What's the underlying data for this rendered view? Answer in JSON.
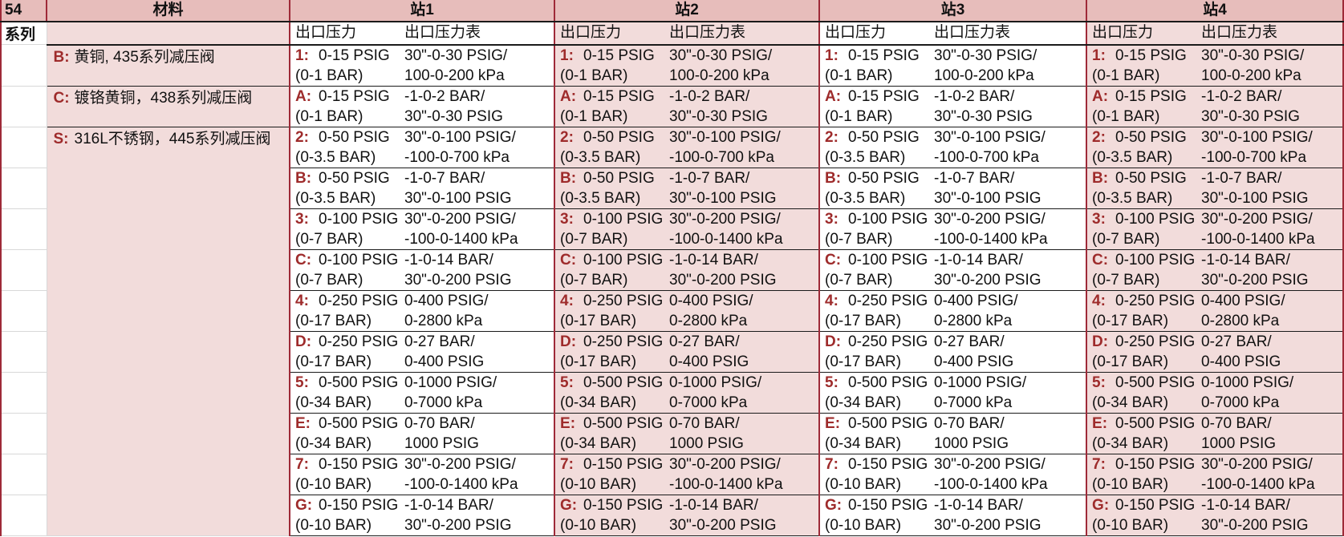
{
  "sheet": {
    "corner_header": "54",
    "corner_subheader": "系列",
    "material_header": "材料"
  },
  "labels": {
    "outlet_pressure": "出口压力",
    "outlet_gauge": "出口压力表"
  },
  "stations": [
    "站1",
    "站2",
    "站3",
    "站4"
  ],
  "materials": [
    {
      "code": "B:",
      "text": "黄铜, 435系列减压阀"
    },
    {
      "code": "C:",
      "text": "镀铬黄铜，438系列减压阀"
    },
    {
      "code": "S:",
      "text": "316L不锈钢，445系列减压阀"
    }
  ],
  "pressure_rows": [
    {
      "code": "1:",
      "range": "0-15 PSIG",
      "range_bar": "(0-1 BAR)",
      "gauge1": "30\"-0-30 PSIG/",
      "gauge2": "100-0-200 kPa"
    },
    {
      "code": "A:",
      "range": "0-15 PSIG",
      "range_bar": "(0-1 BAR)",
      "gauge1": "-1-0-2 BAR/",
      "gauge2": "30\"-0-30 PSIG"
    },
    {
      "code": "2:",
      "range": "0-50 PSIG",
      "range_bar": "(0-3.5 BAR)",
      "gauge1": "30\"-0-100 PSIG/",
      "gauge2": "-100-0-700 kPa"
    },
    {
      "code": "B:",
      "range": "0-50 PSIG",
      "range_bar": "(0-3.5 BAR)",
      "gauge1": "-1-0-7 BAR/",
      "gauge2": "30\"-0-100 PSIG"
    },
    {
      "code": "3:",
      "range": "0-100 PSIG",
      "range_bar": "(0-7 BAR)",
      "gauge1": "30\"-0-200 PSIG/",
      "gauge2": "-100-0-1400 kPa"
    },
    {
      "code": "C:",
      "range": "0-100 PSIG",
      "range_bar": "(0-7 BAR)",
      "gauge1": "-1-0-14 BAR/",
      "gauge2": "30\"-0-200 PSIG"
    },
    {
      "code": "4:",
      "range": "0-250 PSIG",
      "range_bar": "(0-17 BAR)",
      "gauge1": "0-400 PSIG/",
      "gauge2": "0-2800 kPa"
    },
    {
      "code": "D:",
      "range": "0-250 PSIG",
      "range_bar": "(0-17 BAR)",
      "gauge1": "0-27 BAR/",
      "gauge2": "0-400 PSIG"
    },
    {
      "code": "5:",
      "range": "0-500 PSIG",
      "range_bar": "(0-34 BAR)",
      "gauge1": "0-1000 PSIG/",
      "gauge2": "0-7000 kPa"
    },
    {
      "code": "E:",
      "range": "0-500 PSIG",
      "range_bar": "(0-34 BAR)",
      "gauge1": "0-70 BAR/",
      "gauge2": "1000 PSIG"
    },
    {
      "code": "7:",
      "range": "0-150 PSIG",
      "range_bar": "(0-10 BAR)",
      "gauge1": "30\"-0-200 PSIG/",
      "gauge2": "-100-0-1400 kPa"
    },
    {
      "code": "G:",
      "range": "0-150 PSIG",
      "range_bar": "(0-10 BAR)",
      "gauge1": "-1-0-14 BAR/",
      "gauge2": "30\"-0-200 PSIG"
    }
  ],
  "colors": {
    "header_band": "#E7BDBB",
    "body_pink": "#F2DCDB",
    "separator_maroon": "#9E2A38",
    "code_red": "#9E2B2B",
    "row_line": "#1a1a1a",
    "gridline_grey": "#D8D8D8"
  }
}
